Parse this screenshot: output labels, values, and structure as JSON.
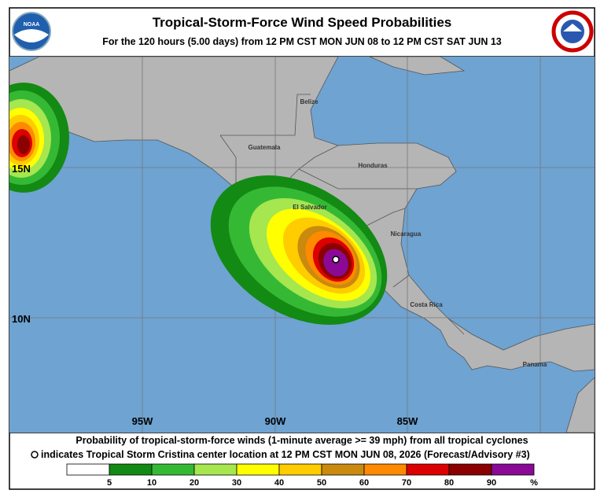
{
  "header": {
    "title": "Tropical-Storm-Force Wind Speed Probabilities",
    "subtitle": "For the 120 hours (5.00 days) from 12 PM CST MON JUN 08 to 12 PM CST SAT JUN 13"
  },
  "map": {
    "latitude_labels": [
      "15N",
      "10N"
    ],
    "longitude_labels": [
      "95W",
      "90W",
      "85W"
    ],
    "place_labels": [
      "Belize",
      "Guatemala",
      "Honduras",
      "El Salvador",
      "Nicaragua",
      "Costa Rica",
      "Panama"
    ]
  },
  "footer": {
    "caption": "Probability of tropical-storm-force winds (1-minute average >= 39 mph) from all tropical cyclones",
    "note": "indicates Tropical Storm Cristina center location at 12 PM CST MON JUN 08, 2026 (Forecast/Advisory #3)"
  },
  "legend": {
    "colors": [
      "#ffffff",
      "#138a13",
      "#35b935",
      "#a6e64f",
      "#ffff00",
      "#ffcc00",
      "#c98a0e",
      "#ff8a00",
      "#dd0000",
      "#8b0000",
      "#8a0a96"
    ],
    "labels": [
      5,
      10,
      20,
      30,
      40,
      50,
      60,
      70,
      80,
      90
    ],
    "unit": "%"
  }
}
